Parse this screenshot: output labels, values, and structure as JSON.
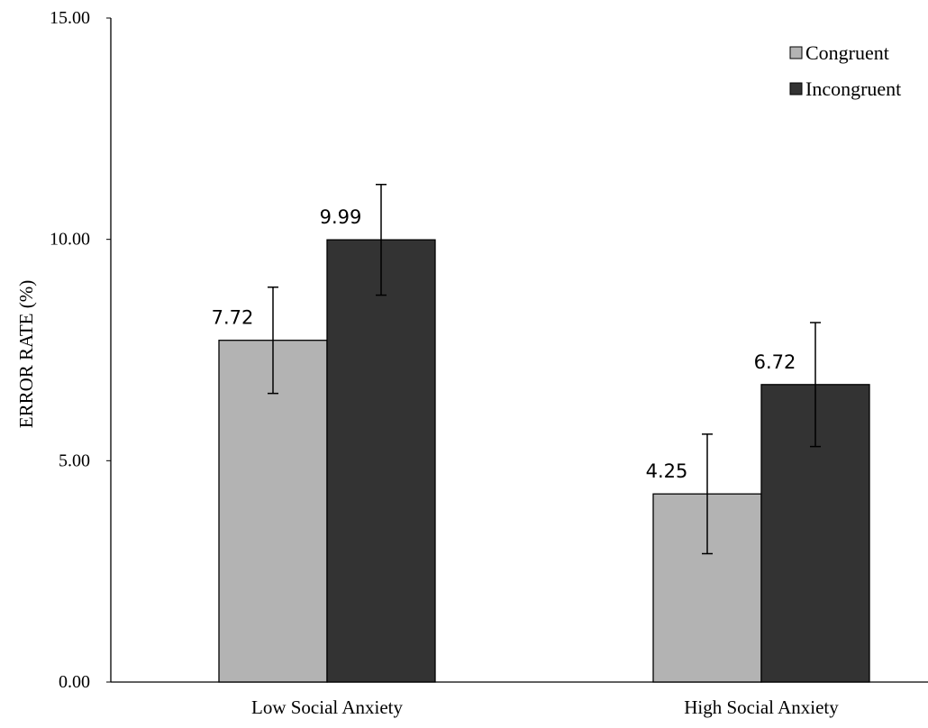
{
  "chart_data": {
    "type": "bar",
    "title": "",
    "xlabel": "",
    "ylabel": "ERROR RATE (%)",
    "ylim": [
      0,
      15
    ],
    "yticks": [
      "0.00",
      "5.00",
      "10.00",
      "15.00"
    ],
    "grid": false,
    "legend_position": "top-right",
    "categories": [
      "Low Social Anxiety",
      "High Social Anxiety"
    ],
    "series": [
      {
        "name": "Congruent",
        "color": "#b3b3b3",
        "values": [
          7.72,
          4.25
        ],
        "labels": [
          "7.72",
          "4.25"
        ],
        "error": [
          1.2,
          1.35
        ]
      },
      {
        "name": "Incongruent",
        "color": "#333333",
        "values": [
          9.99,
          6.72
        ],
        "labels": [
          "9.99",
          "6.72"
        ],
        "error": [
          1.25,
          1.4
        ]
      }
    ]
  }
}
